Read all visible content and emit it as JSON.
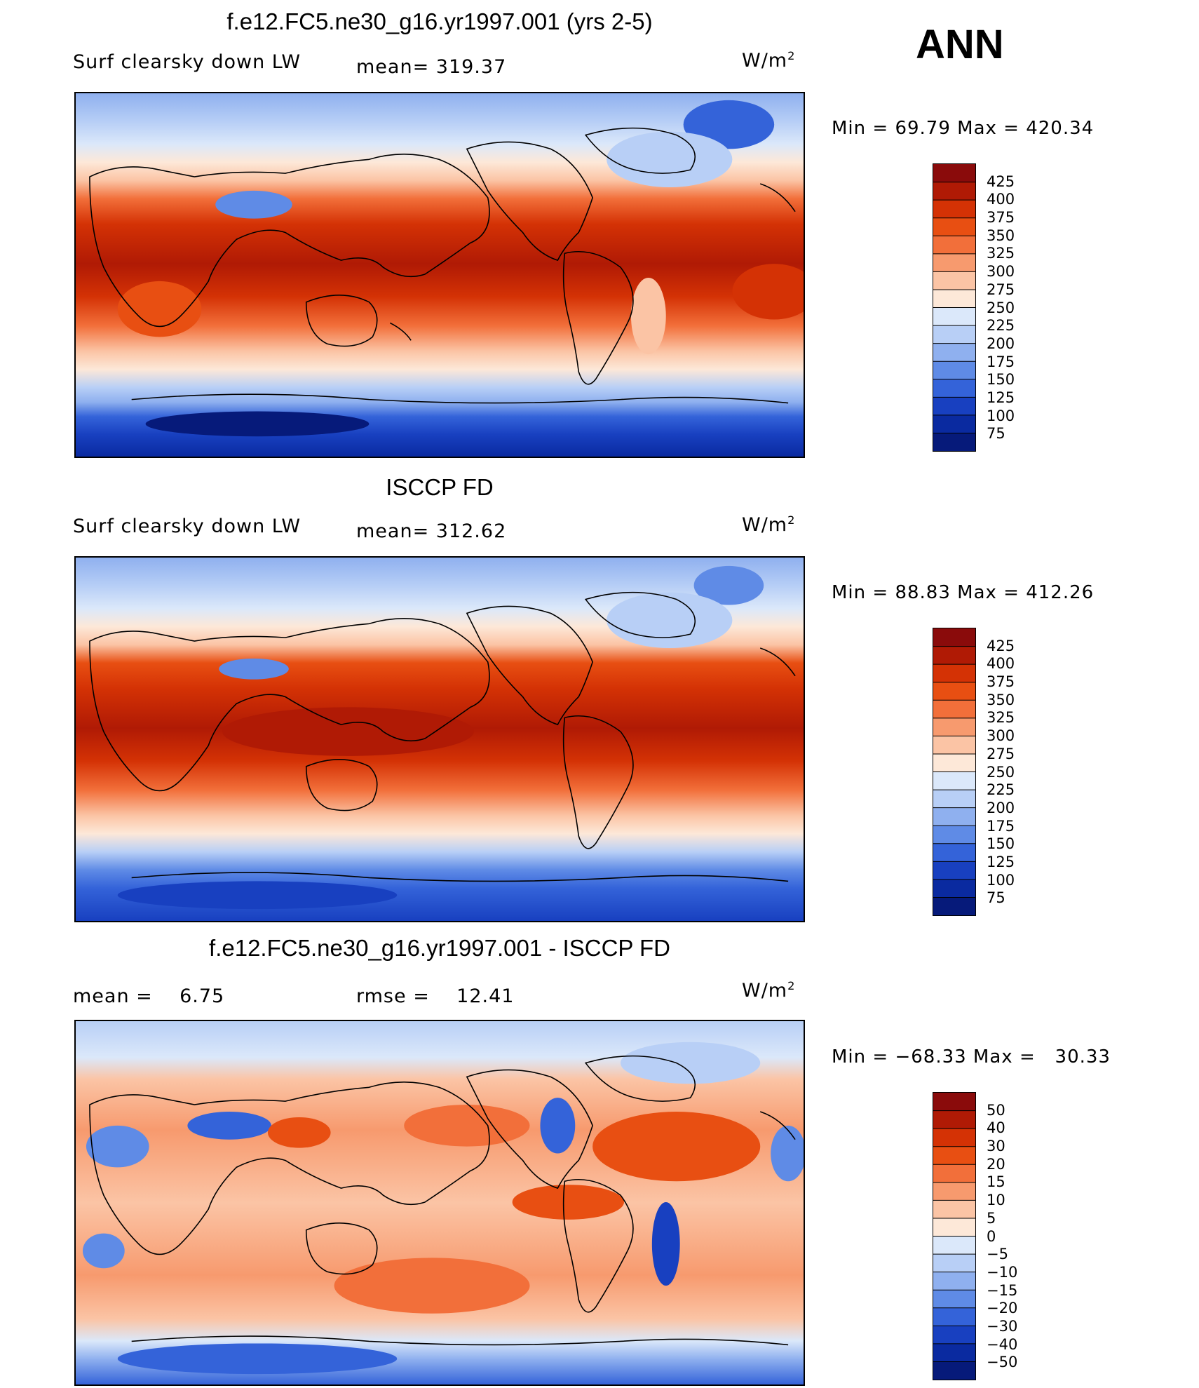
{
  "season": "ANN",
  "panels": [
    {
      "title": "f.e12.FC5.ne30_g16.yr1997.001 (yrs 2-5)",
      "left_label": "Surf clearsky down LW",
      "mid_label": "mean= 319.37",
      "units_base": "W/m",
      "units_exp": "2",
      "minmax": "Min =   69.79 Max = 420.34",
      "colorbar": {
        "labels": [
          "425",
          "400",
          "375",
          "350",
          "325",
          "300",
          "275",
          "250",
          "225",
          "200",
          "175",
          "150",
          "125",
          "100",
          "75"
        ],
        "colors": [
          "#8a0b0b",
          "#b01a05",
          "#d43205",
          "#e84f12",
          "#f26f3a",
          "#f79a6e",
          "#fbc4a5",
          "#fde8d8",
          "#dbe8fa",
          "#b8cff6",
          "#8fb0ef",
          "#5f8be6",
          "#3463d9",
          "#1840c0",
          "#0a2aa0",
          "#061a7a"
        ]
      }
    },
    {
      "title": "ISCCP FD",
      "left_label": "Surf clearsky down LW",
      "mid_label": "mean= 312.62",
      "units_base": "W/m",
      "units_exp": "2",
      "minmax": "Min =   88.83 Max = 412.26",
      "colorbar": {
        "labels": [
          "425",
          "400",
          "375",
          "350",
          "325",
          "300",
          "275",
          "250",
          "225",
          "200",
          "175",
          "150",
          "125",
          "100",
          "75"
        ],
        "colors": [
          "#8a0b0b",
          "#b01a05",
          "#d43205",
          "#e84f12",
          "#f26f3a",
          "#f79a6e",
          "#fbc4a5",
          "#fde8d8",
          "#dbe8fa",
          "#b8cff6",
          "#8fb0ef",
          "#5f8be6",
          "#3463d9",
          "#1840c0",
          "#0a2aa0",
          "#061a7a"
        ]
      }
    },
    {
      "title": "f.e12.FC5.ne30_g16.yr1997.001 - ISCCP FD",
      "left_label": "mean =    6.75",
      "mid_label": "rmse =    12.41",
      "units_base": "W/m",
      "units_exp": "2",
      "minmax": "Min = −68.33 Max =   30.33",
      "colorbar": {
        "labels": [
          "50",
          "40",
          "30",
          "20",
          "15",
          "10",
          "5",
          "0",
          "−5",
          "−10",
          "−15",
          "−20",
          "−30",
          "−40",
          "−50"
        ],
        "colors": [
          "#8a0b0b",
          "#b01a05",
          "#d43205",
          "#e84f12",
          "#f26f3a",
          "#f79a6e",
          "#fbc4a5",
          "#fde8d8",
          "#dbe8fa",
          "#b8cff6",
          "#8fb0ef",
          "#5f8be6",
          "#3463d9",
          "#1840c0",
          "#0a2aa0",
          "#061a7a"
        ]
      }
    }
  ]
}
